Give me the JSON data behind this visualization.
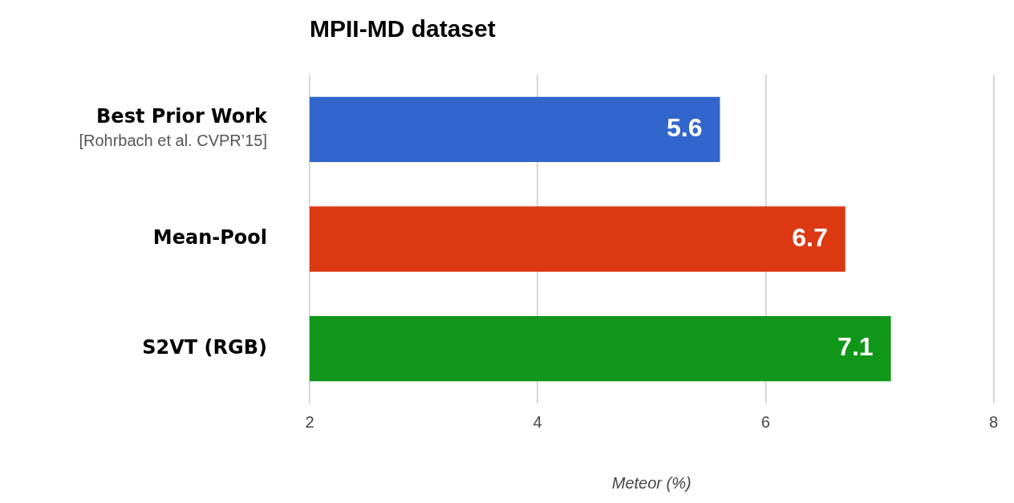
{
  "chart_data": {
    "type": "bar",
    "orientation": "horizontal",
    "title": "MPII-MD dataset",
    "xlabel": "Meteor (%)",
    "categories": [
      "Best Prior Work\n[Rohrbach et al. CVPR’15]",
      "Mean-Pool",
      "S2VT (RGB)"
    ],
    "values": [
      5.6,
      6.7,
      7.1
    ],
    "colors": [
      "#3366cc",
      "#dc3912",
      "#109618"
    ],
    "xlim": [
      2,
      8
    ],
    "xticks": [
      2,
      4,
      6,
      8
    ],
    "grid": "x",
    "data_labels": true,
    "legend": false
  }
}
